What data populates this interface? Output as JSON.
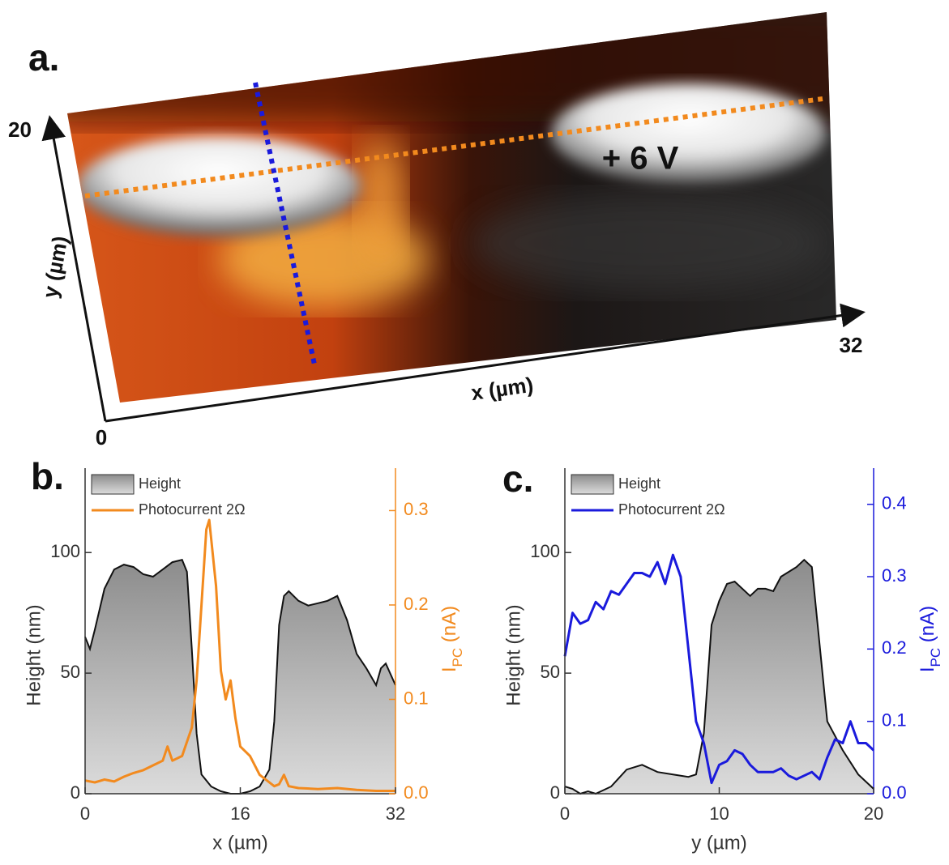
{
  "panel_a": {
    "label": "a.",
    "xlabel": "x (µm)",
    "ylabel": "y (µm)",
    "origin": 0,
    "xmax": 32,
    "ymax": 20,
    "annotation": "+ 6 V"
  },
  "chart_data": [
    {
      "type": "area-line",
      "panel_label": "b.",
      "xlabel": "x (µm)",
      "ylabel": "Height (nm)",
      "y2label": [
        "I",
        "PC",
        " (nA)"
      ],
      "xlim": [
        0,
        32
      ],
      "xticks": [
        0,
        16,
        32
      ],
      "ylim": [
        0,
        135
      ],
      "yticks": [
        0,
        50,
        100
      ],
      "y2lim": [
        0,
        0.345
      ],
      "y2ticks": [
        {
          "value": 0,
          "label": "0.0"
        },
        0.1,
        0.2,
        0.3
      ],
      "series": [
        {
          "name": "Height",
          "color": "#999999",
          "x": [
            0,
            0.5,
            1,
            2,
            3,
            4,
            5,
            6,
            7,
            8,
            9,
            10,
            10.5,
            11,
            11.5,
            12,
            13,
            14,
            15,
            16,
            17,
            18,
            19,
            19.5,
            20,
            20.5,
            21,
            22,
            23,
            24,
            25,
            26,
            27,
            28,
            29,
            30,
            30.5,
            31,
            32
          ],
          "values": [
            65,
            60,
            68,
            85,
            93,
            95,
            94,
            91,
            90,
            93,
            96,
            97,
            92,
            60,
            25,
            8,
            3,
            1,
            0,
            0,
            1,
            3,
            10,
            30,
            70,
            82,
            84,
            80,
            78,
            79,
            80,
            82,
            72,
            58,
            52,
            45,
            52,
            54,
            45
          ]
        },
        {
          "name": "Photocurrent 2Ω",
          "color": "#f28a1e",
          "axis": "y2",
          "x": [
            0,
            1,
            2,
            3,
            4,
            5,
            6,
            7,
            8,
            8.5,
            9,
            10,
            11,
            11.5,
            12,
            12.5,
            12.8,
            13,
            13.5,
            14,
            14.5,
            15,
            15.5,
            16,
            17,
            18,
            19,
            19.5,
            20,
            20.5,
            21,
            22,
            24,
            26,
            28,
            30,
            32
          ],
          "values": [
            0.014,
            0.012,
            0.015,
            0.013,
            0.018,
            0.022,
            0.025,
            0.03,
            0.035,
            0.05,
            0.035,
            0.04,
            0.07,
            0.12,
            0.2,
            0.28,
            0.29,
            0.27,
            0.22,
            0.13,
            0.1,
            0.12,
            0.08,
            0.05,
            0.04,
            0.02,
            0.012,
            0.008,
            0.01,
            0.02,
            0.008,
            0.006,
            0.005,
            0.006,
            0.004,
            0.003,
            0.003
          ]
        }
      ]
    },
    {
      "type": "area-line",
      "panel_label": "c.",
      "xlabel": "y (µm)",
      "ylabel": "Height (nm)",
      "y2label": [
        "I",
        "PC",
        " (nA)"
      ],
      "xlim": [
        0,
        20
      ],
      "xticks": [
        0,
        10,
        20
      ],
      "ylim": [
        0,
        135
      ],
      "yticks": [
        0,
        50,
        100
      ],
      "y2lim": [
        0,
        0.45
      ],
      "y2ticks": [
        {
          "value": 0,
          "label": "0.0"
        },
        0.1,
        0.2,
        0.3,
        0.4
      ],
      "series": [
        {
          "name": "Height",
          "color": "#999999",
          "x": [
            0,
            0.5,
            1,
            1.5,
            2,
            3,
            4,
            5,
            6,
            7,
            8,
            8.5,
            9,
            9.5,
            10,
            10.5,
            11,
            12,
            12.5,
            13,
            13.5,
            14,
            15,
            15.5,
            16,
            17,
            18,
            19,
            20
          ],
          "values": [
            3,
            2,
            0,
            1,
            0,
            3,
            10,
            12,
            9,
            8,
            7,
            8,
            25,
            70,
            80,
            87,
            88,
            82,
            85,
            85,
            84,
            90,
            94,
            97,
            94,
            30,
            18,
            8,
            2
          ]
        },
        {
          "name": "Photocurrent 2Ω",
          "color": "#1a1adc",
          "axis": "y2",
          "x": [
            0,
            0.5,
            1,
            1.5,
            2,
            2.5,
            3,
            3.5,
            4,
            4.5,
            5,
            5.5,
            6,
            6.5,
            7,
            7.5,
            8,
            8.5,
            9,
            9.5,
            10,
            10.5,
            11,
            11.5,
            12,
            12.5,
            13,
            13.5,
            14,
            14.5,
            15,
            15.5,
            16,
            16.5,
            17,
            17.5,
            18,
            18.5,
            19,
            19.5,
            20
          ],
          "values": [
            0.19,
            0.25,
            0.235,
            0.24,
            0.265,
            0.255,
            0.28,
            0.275,
            0.29,
            0.305,
            0.305,
            0.3,
            0.32,
            0.29,
            0.33,
            0.3,
            0.2,
            0.1,
            0.07,
            0.015,
            0.04,
            0.045,
            0.06,
            0.055,
            0.04,
            0.03,
            0.03,
            0.03,
            0.035,
            0.025,
            0.02,
            0.025,
            0.03,
            0.02,
            0.05,
            0.075,
            0.07,
            0.1,
            0.07,
            0.07,
            0.06
          ]
        }
      ]
    }
  ]
}
